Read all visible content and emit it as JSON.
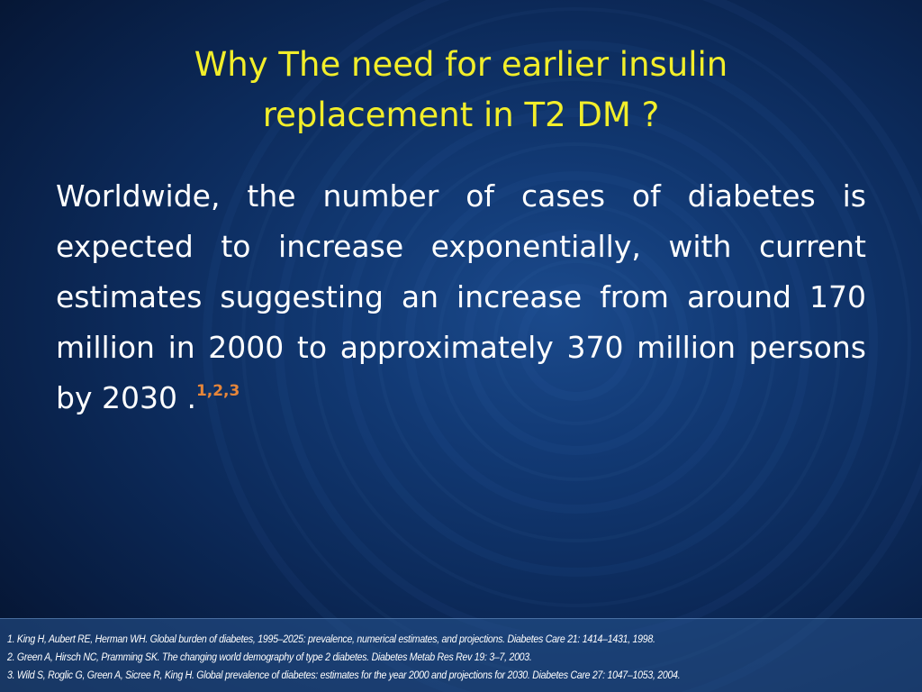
{
  "slide": {
    "title_line1": "Why The need for earlier insulin",
    "title_line2": "replacement in T2 DM ?",
    "body": "Worldwide, the number of cases of diabetes is expected to increase exponentially, with current estimates suggesting an increase from around 170 million in 2000 to approximately 370 million persons by 2030 .",
    "citation_marks": "1,2,3",
    "references": [
      "1. King H, Aubert RE, Herman WH. Global burden of diabetes, 1995–2025: prevalence, numerical estimates, and projections. Diabetes Care 21: 1414–1431, 1998.",
      "2. Green A, Hirsch NC, Pramming SK. The changing world demography of type 2 diabetes. Diabetes Metab Res Rev 19: 3–7, 2003.",
      "3. Wild S, Roglic G, Green A, Sicree R, King H. Global prevalence of diabetes: estimates for the year 2000 and projections for 2030. Diabetes Care 27: 1047–1053, 2004."
    ]
  },
  "colors": {
    "title": "#f2ee2a",
    "body_text": "#ffffff",
    "citation": "#e6863a",
    "background": "#0c2a5a"
  }
}
